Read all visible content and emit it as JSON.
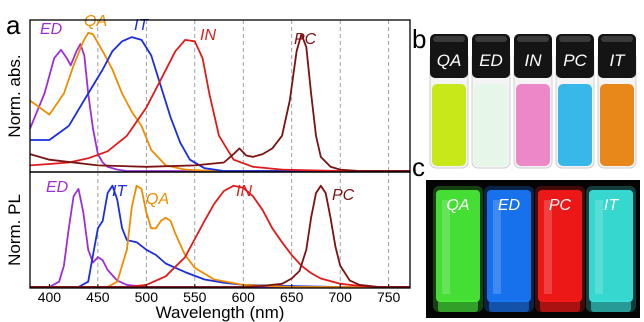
{
  "panels": {
    "a": "a",
    "b": "b",
    "c": "c"
  },
  "chart_data": [
    {
      "type": "line",
      "panel": "a",
      "ylabel": "Norm. abs.",
      "xlim": [
        380,
        772
      ],
      "ylim": [
        0,
        1.05
      ],
      "x_ticks": [
        400,
        450,
        500,
        550,
        600,
        650,
        700,
        750
      ],
      "grid": "dashed vertical lines at x ticks",
      "series": [
        {
          "name": "ED",
          "color": "#9b30d9",
          "x": [
            380,
            395,
            405,
            412,
            418,
            422,
            428,
            432,
            436,
            440,
            445,
            450,
            455,
            460,
            470,
            480,
            500,
            550,
            772
          ],
          "y": [
            0.3,
            0.55,
            0.8,
            0.86,
            0.8,
            0.75,
            0.85,
            0.9,
            0.82,
            0.55,
            0.3,
            0.12,
            0.06,
            0.03,
            0.01,
            0.0,
            0.0,
            0.0,
            0.0
          ]
        },
        {
          "name": "QA",
          "color": "#f08c00",
          "x": [
            380,
            400,
            415,
            425,
            435,
            440,
            445,
            455,
            465,
            475,
            485,
            495,
            505,
            520,
            540,
            570,
            772
          ],
          "y": [
            0.5,
            0.4,
            0.55,
            0.75,
            0.92,
            0.98,
            0.97,
            0.85,
            0.72,
            0.55,
            0.42,
            0.32,
            0.15,
            0.04,
            0.01,
            0.0,
            0.0
          ]
        },
        {
          "name": "IT",
          "color": "#1a2ee0",
          "x": [
            380,
            400,
            420,
            440,
            455,
            465,
            475,
            485,
            495,
            505,
            515,
            525,
            535,
            545,
            560,
            580,
            600,
            772
          ],
          "y": [
            0.22,
            0.22,
            0.32,
            0.55,
            0.72,
            0.85,
            0.92,
            0.95,
            0.93,
            0.82,
            0.6,
            0.38,
            0.2,
            0.08,
            0.02,
            0.0,
            0.0,
            0.0
          ]
        },
        {
          "name": "IN",
          "color": "#e21a1a",
          "x": [
            380,
            400,
            420,
            440,
            460,
            480,
            500,
            515,
            530,
            540,
            550,
            558,
            565,
            575,
            590,
            610,
            640,
            700,
            772
          ],
          "y": [
            0.04,
            0.05,
            0.06,
            0.09,
            0.14,
            0.25,
            0.45,
            0.65,
            0.85,
            0.93,
            0.92,
            0.8,
            0.55,
            0.25,
            0.08,
            0.03,
            0.01,
            0.0,
            0.0
          ]
        },
        {
          "name": "PC",
          "color": "#7a1212",
          "x": [
            380,
            400,
            450,
            500,
            550,
            580,
            590,
            596,
            603,
            610,
            620,
            630,
            640,
            648,
            655,
            660,
            665,
            670,
            675,
            680,
            690,
            700,
            720,
            772
          ],
          "y": [
            0.12,
            0.08,
            0.04,
            0.03,
            0.04,
            0.06,
            0.12,
            0.16,
            0.11,
            0.1,
            0.12,
            0.16,
            0.25,
            0.5,
            0.85,
            0.97,
            0.88,
            0.55,
            0.25,
            0.1,
            0.03,
            0.01,
            0.0,
            0.0
          ]
        }
      ]
    },
    {
      "type": "line",
      "panel": "a",
      "xlabel": "Wavelength (nm)",
      "ylabel": "Norm. PL",
      "xlim": [
        380,
        772
      ],
      "ylim": [
        0,
        1.05
      ],
      "x_ticks": [
        400,
        450,
        500,
        550,
        600,
        650,
        700,
        750
      ],
      "grid": "dashed vertical lines at x ticks",
      "series": [
        {
          "name": "ED",
          "color": "#9b30d9",
          "x": [
            380,
            400,
            410,
            415,
            420,
            425,
            430,
            435,
            440,
            445,
            450,
            455,
            460,
            470,
            480,
            500,
            520,
            772
          ],
          "y": [
            0.0,
            0.0,
            0.05,
            0.2,
            0.55,
            0.85,
            0.92,
            0.7,
            0.35,
            0.23,
            0.28,
            0.25,
            0.16,
            0.06,
            0.02,
            0.0,
            0.0,
            0.0
          ]
        },
        {
          "name": "IT",
          "color": "#1a2ee0",
          "x": [
            380,
            430,
            440,
            445,
            450,
            455,
            460,
            465,
            470,
            475,
            480,
            490,
            500,
            510,
            520,
            530,
            540,
            560,
            580,
            600,
            640,
            700,
            772
          ],
          "y": [
            0.0,
            0.0,
            0.05,
            0.3,
            0.55,
            0.62,
            0.88,
            0.95,
            0.82,
            0.55,
            0.44,
            0.42,
            0.35,
            0.3,
            0.22,
            0.18,
            0.14,
            0.07,
            0.04,
            0.02,
            0.01,
            0.0,
            0.0
          ]
        },
        {
          "name": "QA",
          "color": "#f08c00",
          "x": [
            380,
            460,
            470,
            480,
            485,
            490,
            495,
            500,
            505,
            510,
            515,
            520,
            525,
            530,
            540,
            550,
            570,
            600,
            650,
            772
          ],
          "y": [
            0.0,
            0.0,
            0.05,
            0.35,
            0.75,
            0.95,
            0.92,
            0.7,
            0.55,
            0.55,
            0.62,
            0.65,
            0.62,
            0.5,
            0.3,
            0.18,
            0.07,
            0.02,
            0.0,
            0.0
          ]
        },
        {
          "name": "IN",
          "color": "#e21a1a",
          "x": [
            380,
            480,
            500,
            520,
            540,
            550,
            560,
            570,
            580,
            590,
            600,
            610,
            620,
            630,
            640,
            650,
            660,
            670,
            680,
            700,
            720,
            740,
            772
          ],
          "y": [
            0.0,
            0.0,
            0.02,
            0.1,
            0.28,
            0.45,
            0.62,
            0.78,
            0.9,
            0.95,
            0.93,
            0.85,
            0.72,
            0.55,
            0.42,
            0.3,
            0.2,
            0.13,
            0.08,
            0.03,
            0.01,
            0.0,
            0.0
          ]
        },
        {
          "name": "PC",
          "color": "#7a1212",
          "x": [
            380,
            600,
            620,
            640,
            650,
            658,
            665,
            670,
            675,
            680,
            685,
            690,
            695,
            700,
            710,
            720,
            740,
            772
          ],
          "y": [
            0.0,
            0.0,
            0.01,
            0.03,
            0.08,
            0.15,
            0.35,
            0.65,
            0.88,
            0.95,
            0.88,
            0.65,
            0.38,
            0.2,
            0.06,
            0.02,
            0.0,
            0.0
          ]
        }
      ]
    }
  ],
  "photo_b": {
    "vials": [
      {
        "label": "QA",
        "liquid_color": "#c8e81a"
      },
      {
        "label": "ED",
        "liquid_color": "#e6f6e8"
      },
      {
        "label": "IN",
        "liquid_color": "#ec88c8"
      },
      {
        "label": "PC",
        "liquid_color": "#38b8e8"
      },
      {
        "label": "IT",
        "liquid_color": "#e8881a"
      }
    ]
  },
  "photo_c": {
    "tubes": [
      {
        "label": "QA",
        "glow_color": "#4af03a"
      },
      {
        "label": "ED",
        "glow_color": "#1a7aff"
      },
      {
        "label": "PC",
        "glow_color": "#ff1a1a"
      },
      {
        "label": "IT",
        "glow_color": "#3ae8e0"
      }
    ]
  }
}
